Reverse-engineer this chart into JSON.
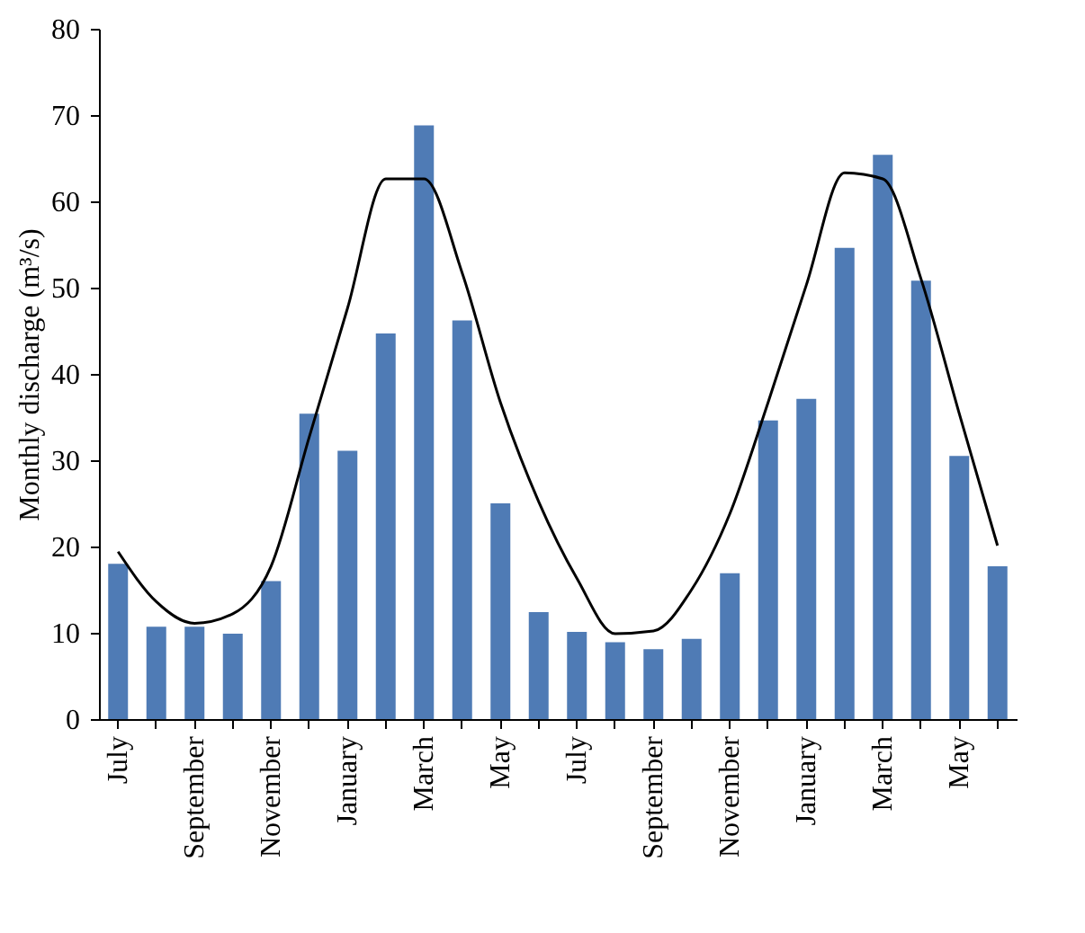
{
  "chart_data": {
    "type": "bar",
    "ylabel": "Monthly discharge (m³/s)",
    "categories": [
      "July",
      null,
      "September",
      null,
      "November",
      null,
      "January",
      null,
      "March",
      null,
      "May",
      null,
      "July",
      null,
      "September",
      null,
      "November",
      null,
      "January",
      null,
      "March",
      null,
      "May",
      null
    ],
    "series": [
      {
        "color": "#4f7bb5",
        "values": [
          18.0,
          10.7,
          10.7,
          9.9,
          16.0,
          35.4,
          31.1,
          44.7,
          68.8,
          46.2,
          25.0,
          12.4,
          10.1,
          8.9,
          8.1,
          9.3,
          16.9,
          34.6,
          37.1,
          54.6,
          65.4,
          50.8,
          30.5,
          17.7
        ]
      },
      {
        "type": "line",
        "color": "#000000",
        "values": [
          19.4,
          13.6,
          11.1,
          12.2,
          17.7,
          32.7,
          47.6,
          62.6,
          62.6,
          51.7,
          36.7,
          25.2,
          16.3,
          9.9,
          10.2,
          15.0,
          23.8,
          36.7,
          50.3,
          63.3,
          62.6,
          51.0,
          35.4,
          20.1
        ]
      }
    ],
    "ylim": [
      0,
      80
    ],
    "yticks": [
      0,
      10,
      20,
      30,
      40,
      50,
      60,
      70,
      80
    ],
    "grid": false,
    "marker": "none",
    "line_style": "solid"
  }
}
